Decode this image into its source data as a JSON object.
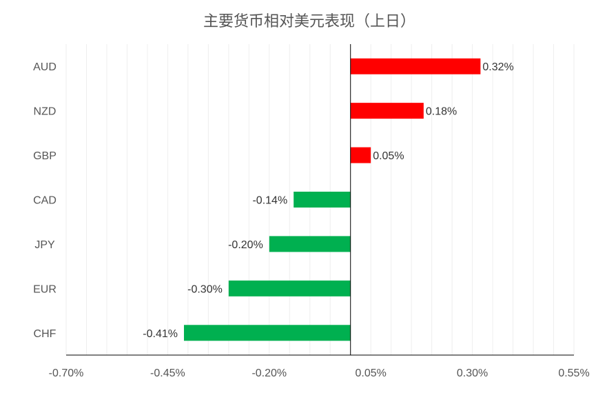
{
  "chart_data": {
    "type": "bar",
    "orientation": "horizontal",
    "title": "主要货币相对美元表现（上日）",
    "categories": [
      "AUD",
      "NZD",
      "GBP",
      "CAD",
      "JPY",
      "EUR",
      "CHF"
    ],
    "values": [
      0.32,
      0.18,
      0.05,
      -0.14,
      -0.2,
      -0.3,
      -0.41
    ],
    "value_labels": [
      "0.32%",
      "0.18%",
      "0.05%",
      "-0.14%",
      "-0.20%",
      "-0.30%",
      "-0.41%"
    ],
    "x_ticks": [
      -0.7,
      -0.45,
      -0.2,
      0.05,
      0.3,
      0.55
    ],
    "x_tick_labels": [
      "-0.70%",
      "-0.45%",
      "-0.20%",
      "0.05%",
      "0.30%",
      "0.55%"
    ],
    "xlim": [
      -0.7,
      0.55
    ],
    "xlabel": "",
    "ylabel": "",
    "grid": true,
    "legend": "none",
    "colors": {
      "positive": "#ff0000",
      "negative": "#00b050"
    }
  }
}
